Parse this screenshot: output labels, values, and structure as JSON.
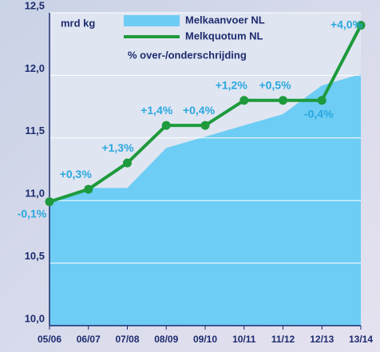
{
  "chart_data": {
    "type": "line",
    "y_label": "mrd kg",
    "categories": [
      "05/06",
      "06/07",
      "07/08",
      "08/09",
      "09/10",
      "10/11",
      "11/12",
      "12/13",
      "13/14"
    ],
    "series": [
      {
        "name": "Melkquotum NL",
        "color": "#6dcdf4",
        "kind": "area",
        "values": [
          11.0,
          11.1,
          11.1,
          11.42,
          11.51,
          11.6,
          11.69,
          11.92,
          12.01
        ]
      },
      {
        "name": "Melkaanvoer NL",
        "color": "#1e9a3c",
        "kind": "line",
        "values": [
          10.99,
          11.09,
          11.3,
          11.6,
          11.6,
          11.8,
          11.8,
          11.8,
          12.4
        ]
      }
    ],
    "annotation_title": "% over-/onderschrijding",
    "annotations": [
      "-0,1%",
      "+0,3%",
      "+1,3%",
      "+1,4%",
      "+0,4%",
      "+1,2%",
      "+0,5%",
      "-0,4%",
      "+4,0%"
    ],
    "ylim": [
      10.0,
      12.5
    ],
    "yticks": [
      {
        "value": 10.0,
        "label": "10,0"
      },
      {
        "value": 10.5,
        "label": "10,5"
      },
      {
        "value": 11.0,
        "label": "11,0"
      },
      {
        "value": 11.5,
        "label": "11,5"
      },
      {
        "value": 12.0,
        "label": "12,0"
      },
      {
        "value": 12.5,
        "label": "12,5"
      }
    ],
    "grid": true
  }
}
